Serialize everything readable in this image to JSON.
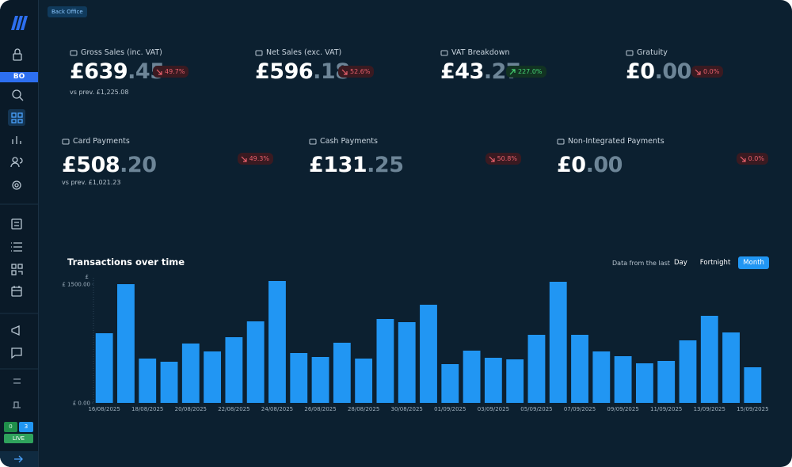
{
  "sidebar": {
    "badge": "BO",
    "counters": [
      0,
      3
    ],
    "status": "LIVE"
  },
  "header": {
    "breadcrumb": "Back Office"
  },
  "kpis": [
    {
      "label": "Gross Sales (inc. VAT)",
      "whole": "£639",
      "decimal": ".45",
      "change": "49.7%",
      "trend": "down",
      "previous": "vs prev.  £1,225.08"
    },
    {
      "label": "Net Sales (exc. VAT)",
      "whole": "£596",
      "decimal": ".18",
      "change": "52.6%",
      "trend": "down"
    },
    {
      "label": "VAT Breakdown",
      "whole": "£43",
      "decimal": ".27",
      "change": "227.0%",
      "trend": "up"
    },
    {
      "label": "Gratuity",
      "whole": "£0",
      "decimal": ".00",
      "change": "0.0%",
      "trend": "down"
    },
    {
      "label": "Card Payments",
      "whole": "£508",
      "decimal": ".20",
      "change": "49.3%",
      "trend": "down",
      "previous": "vs prev. £1,021.23"
    },
    {
      "label": "Cash Payments",
      "whole": "£131",
      "decimal": ".25",
      "change": "50.8%",
      "trend": "down"
    },
    {
      "label": "Non-Integrated Payments",
      "whole": "£0",
      "decimal": ".00",
      "change": "0.0%",
      "trend": "down"
    }
  ],
  "chart": {
    "title": "Transactions over time",
    "range_label": "Data from the last",
    "ranges": [
      "Day",
      "Fortnight",
      "Month"
    ],
    "active_range": 2,
    "chart_data": {
      "type": "bar",
      "color": "#2196f3",
      "y_label": "£",
      "categories": [
        "16/08/2025",
        null,
        "18/08/2025",
        null,
        "20/08/2025",
        null,
        "22/08/2025",
        null,
        "24/08/2025",
        null,
        "26/08/2025",
        null,
        "28/08/2025",
        null,
        "30/08/2025",
        null,
        "01/09/2025",
        null,
        "03/09/2025",
        null,
        "05/09/2025",
        null,
        "07/09/2025",
        null,
        "09/09/2025",
        null,
        "11/09/2025",
        null,
        "13/09/2025",
        null,
        "15/09/2025"
      ],
      "values": [
        880,
        1500,
        560,
        520,
        750,
        650,
        830,
        1030,
        1540,
        630,
        580,
        760,
        560,
        1060,
        1020,
        1240,
        490,
        660,
        570,
        550,
        860,
        1530,
        860,
        650,
        590,
        500,
        530,
        790,
        1100,
        890,
        450
      ],
      "ylim": [
        0,
        1580
      ],
      "yticks": [
        {
          "value": 0,
          "label": "£ 0.00"
        },
        {
          "value": 1500,
          "label": "£ 1500.00"
        }
      ]
    }
  }
}
